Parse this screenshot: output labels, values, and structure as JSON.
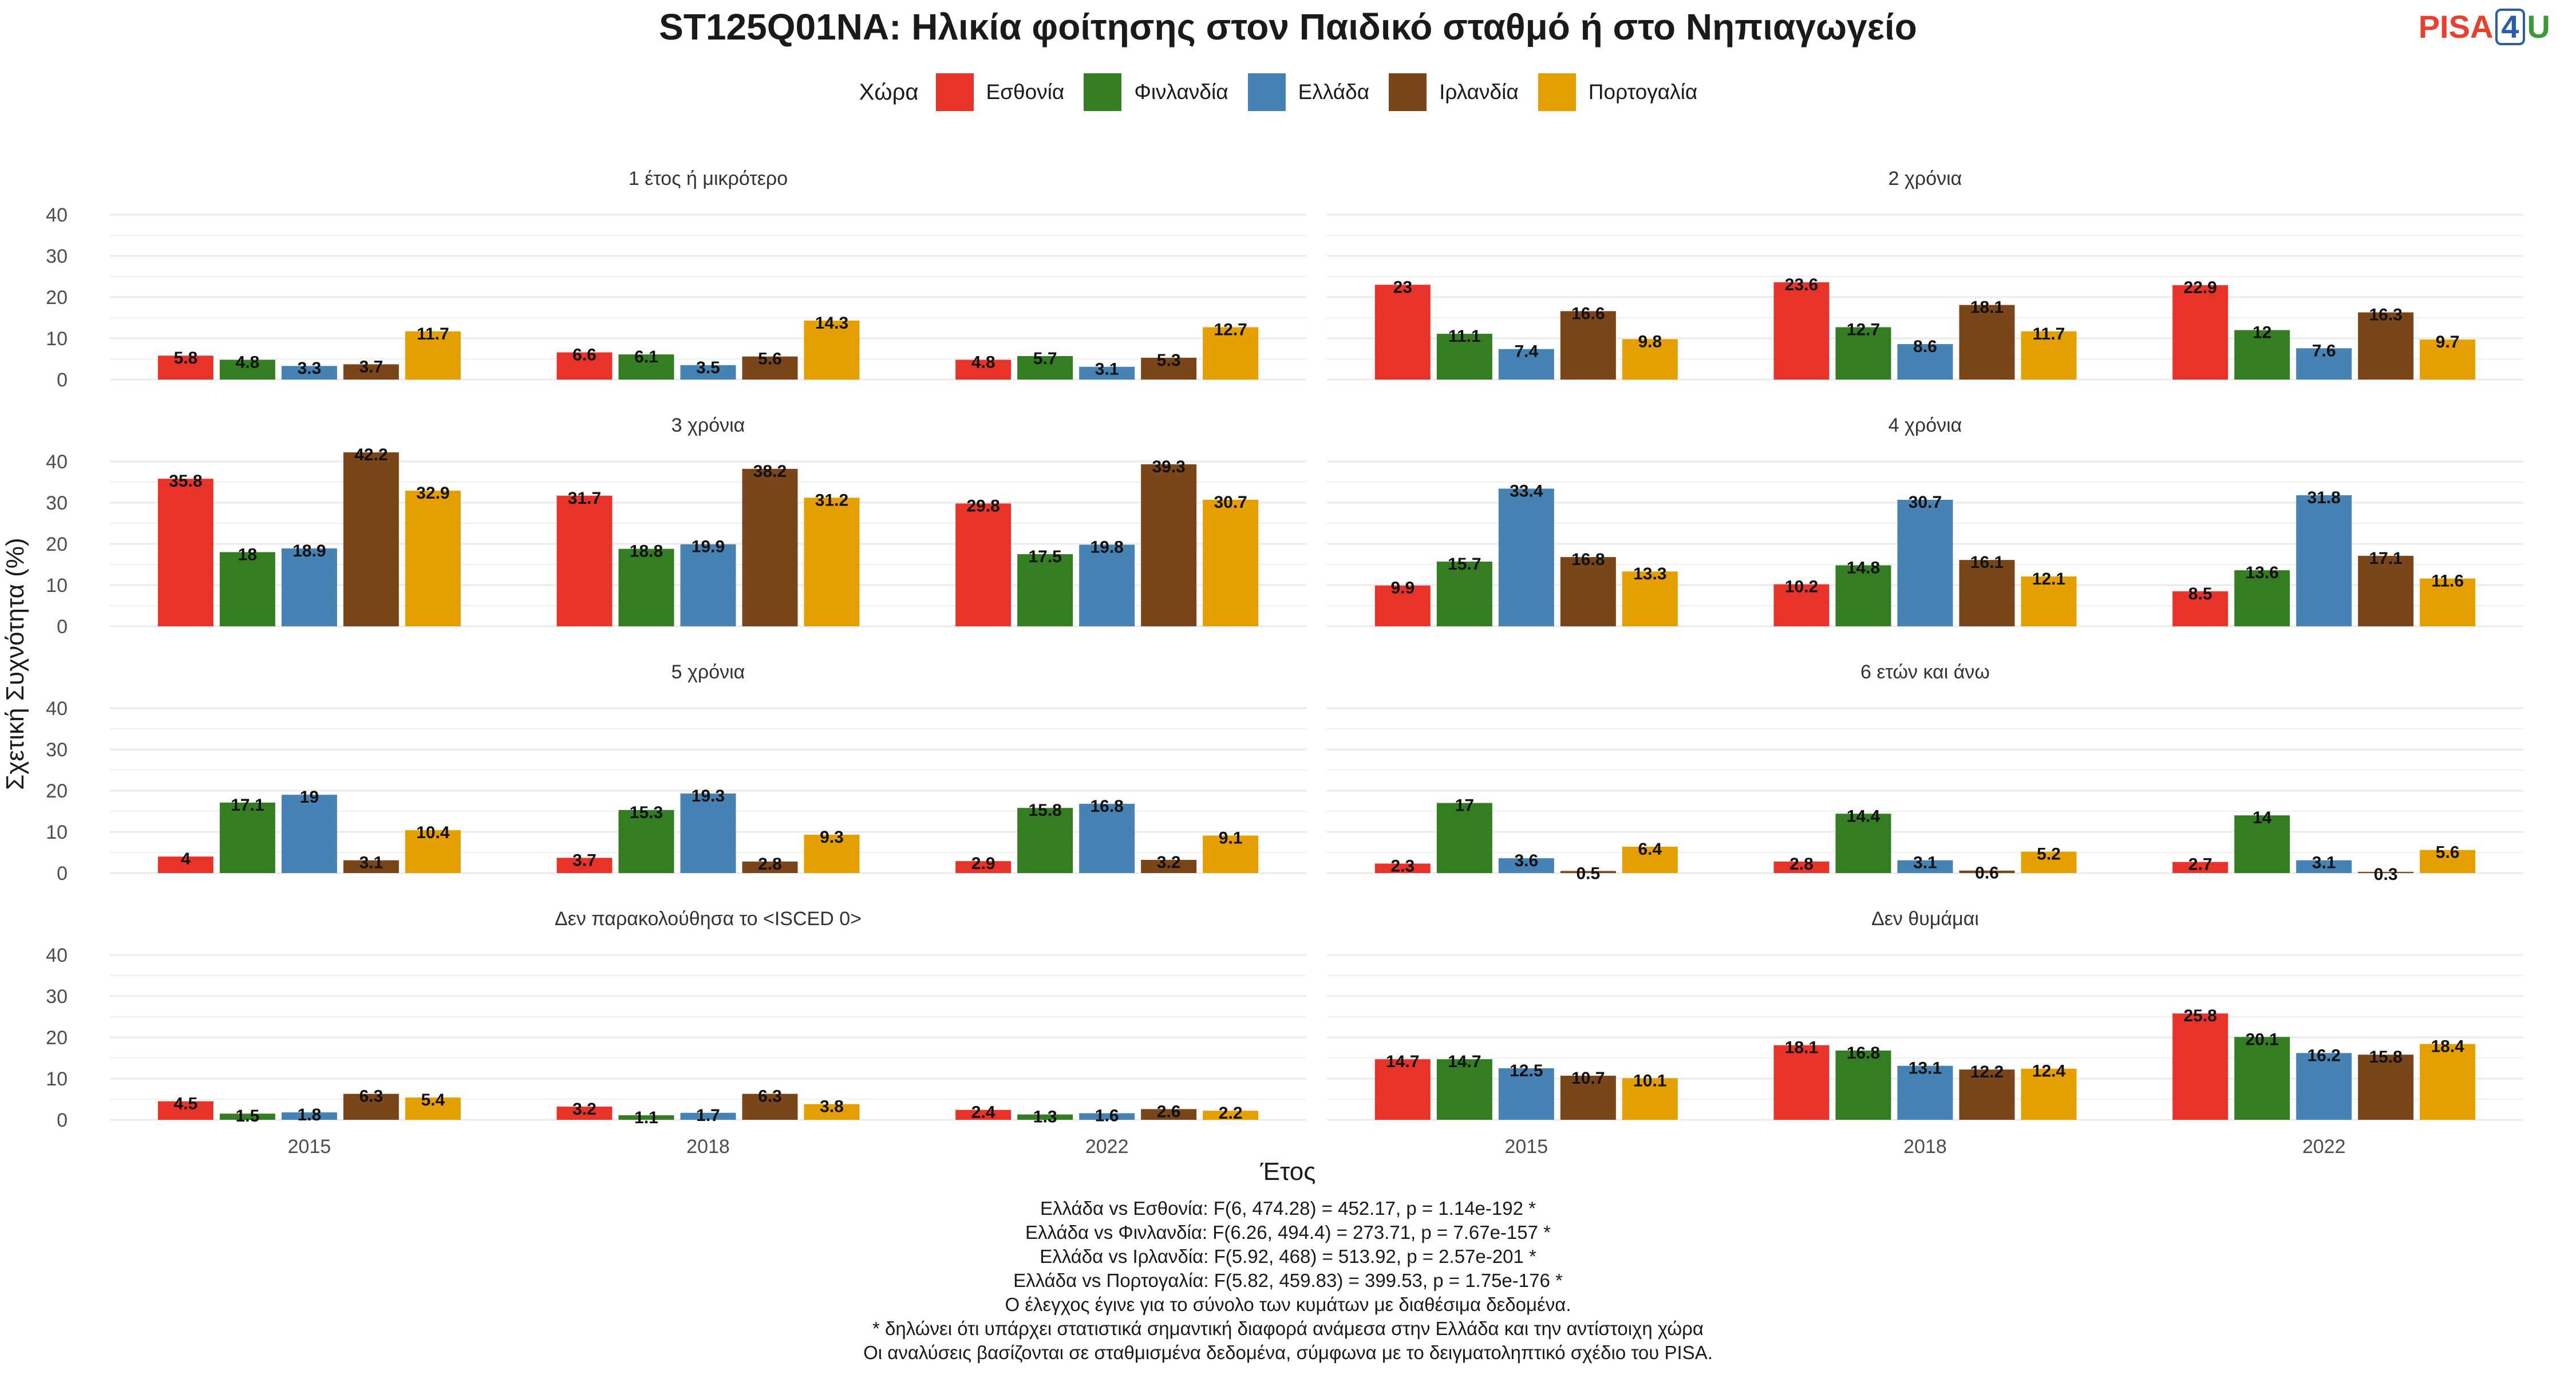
{
  "title": "ST125Q01NA: Ηλικία φοίτησης στον Παιδικό σταθμό ή στο Νηπιαγωγείο",
  "logo": {
    "part1": "PISA",
    "part2": "4",
    "part3": "U"
  },
  "legend_title": "Χώρα",
  "chart_data": {
    "type": "bar",
    "xlabel": "Έτος",
    "ylabel": "Σχετική Συχνότητα (%)",
    "ylim": [
      0,
      40
    ],
    "yticks": [
      0,
      10,
      20,
      30,
      40
    ],
    "grid": true,
    "legend_position": "top",
    "categories": [
      "2015",
      "2018",
      "2022"
    ],
    "series": [
      {
        "name": "Εσθονία",
        "color": "#e8332a"
      },
      {
        "name": "Φινλανδία",
        "color": "#357d23"
      },
      {
        "name": "Ελλάδα",
        "color": "#4682b4"
      },
      {
        "name": "Ιρλανδία",
        "color": "#7a4619"
      },
      {
        "name": "Πορτογαλία",
        "color": "#e69f00"
      }
    ],
    "panels": [
      {
        "title": "1 έτος ή μικρότερο",
        "values": [
          [
            5.8,
            4.8,
            3.3,
            3.7,
            11.7
          ],
          [
            6.6,
            6.1,
            3.5,
            5.6,
            14.3
          ],
          [
            4.8,
            5.7,
            3.1,
            5.3,
            12.7
          ]
        ]
      },
      {
        "title": "2 χρόνια",
        "values": [
          [
            23,
            11.1,
            7.4,
            16.6,
            9.8
          ],
          [
            23.6,
            12.7,
            8.6,
            18.1,
            11.7
          ],
          [
            22.9,
            12,
            7.6,
            16.3,
            9.7
          ]
        ]
      },
      {
        "title": "3 χρόνια",
        "values": [
          [
            35.8,
            18,
            18.9,
            42.2,
            32.9
          ],
          [
            31.7,
            18.8,
            19.9,
            38.2,
            31.2
          ],
          [
            29.8,
            17.5,
            19.8,
            39.3,
            30.7
          ]
        ]
      },
      {
        "title": "4 χρόνια",
        "values": [
          [
            9.9,
            15.7,
            33.4,
            16.8,
            13.3
          ],
          [
            10.2,
            14.8,
            30.7,
            16.1,
            12.1
          ],
          [
            8.5,
            13.6,
            31.8,
            17.1,
            11.6
          ]
        ]
      },
      {
        "title": "5 χρόνια",
        "values": [
          [
            4,
            17.1,
            19,
            3.1,
            10.4
          ],
          [
            3.7,
            15.3,
            19.3,
            2.8,
            9.3
          ],
          [
            2.9,
            15.8,
            16.8,
            3.2,
            9.1
          ]
        ]
      },
      {
        "title": "6 ετών και άνω",
        "values": [
          [
            2.3,
            17,
            3.6,
            0.5,
            6.4
          ],
          [
            2.8,
            14.4,
            3.1,
            0.6,
            5.2
          ],
          [
            2.7,
            14,
            3.1,
            0.3,
            5.6
          ]
        ]
      },
      {
        "title": "Δεν παρακολούθησα το <ISCED 0>",
        "values": [
          [
            4.5,
            1.5,
            1.8,
            6.3,
            5.4
          ],
          [
            3.2,
            1.1,
            1.7,
            6.3,
            3.8
          ],
          [
            2.4,
            1.3,
            1.6,
            2.6,
            2.2
          ]
        ]
      },
      {
        "title": "Δεν θυμάμαι",
        "values": [
          [
            14.7,
            14.7,
            12.5,
            10.7,
            10.1
          ],
          [
            18.1,
            16.8,
            13.1,
            12.2,
            12.4
          ],
          [
            25.8,
            20.1,
            16.2,
            15.8,
            18.4
          ]
        ]
      }
    ]
  },
  "notes": [
    "Ελλάδα vs Εσθονία: F(6, 474.28) = 452.17, p = 1.14e-192 *",
    "Ελλάδα vs Φινλανδία: F(6.26, 494.4) = 273.71, p = 7.67e-157 *",
    "Ελλάδα vs Ιρλανδία: F(5.92, 468) = 513.92, p = 2.57e-201 *",
    "Ελλάδα vs Πορτογαλία: F(5.82, 459.83) = 399.53, p = 1.75e-176 *",
    "Ο έλεγχος έγινε για το σύνολο των κυμάτων με διαθέσιμα δεδομένα.",
    "* δηλώνει ότι υπάρχει στατιστικά σημαντική διαφορά ανάμεσα στην Ελλάδα και την αντίστοιχη χώρα",
    "Οι αναλύσεις βασίζονται σε σταθμισμένα δεδομένα, σύμφωνα με το δειγματοληπτικό σχέδιο του PISA."
  ]
}
